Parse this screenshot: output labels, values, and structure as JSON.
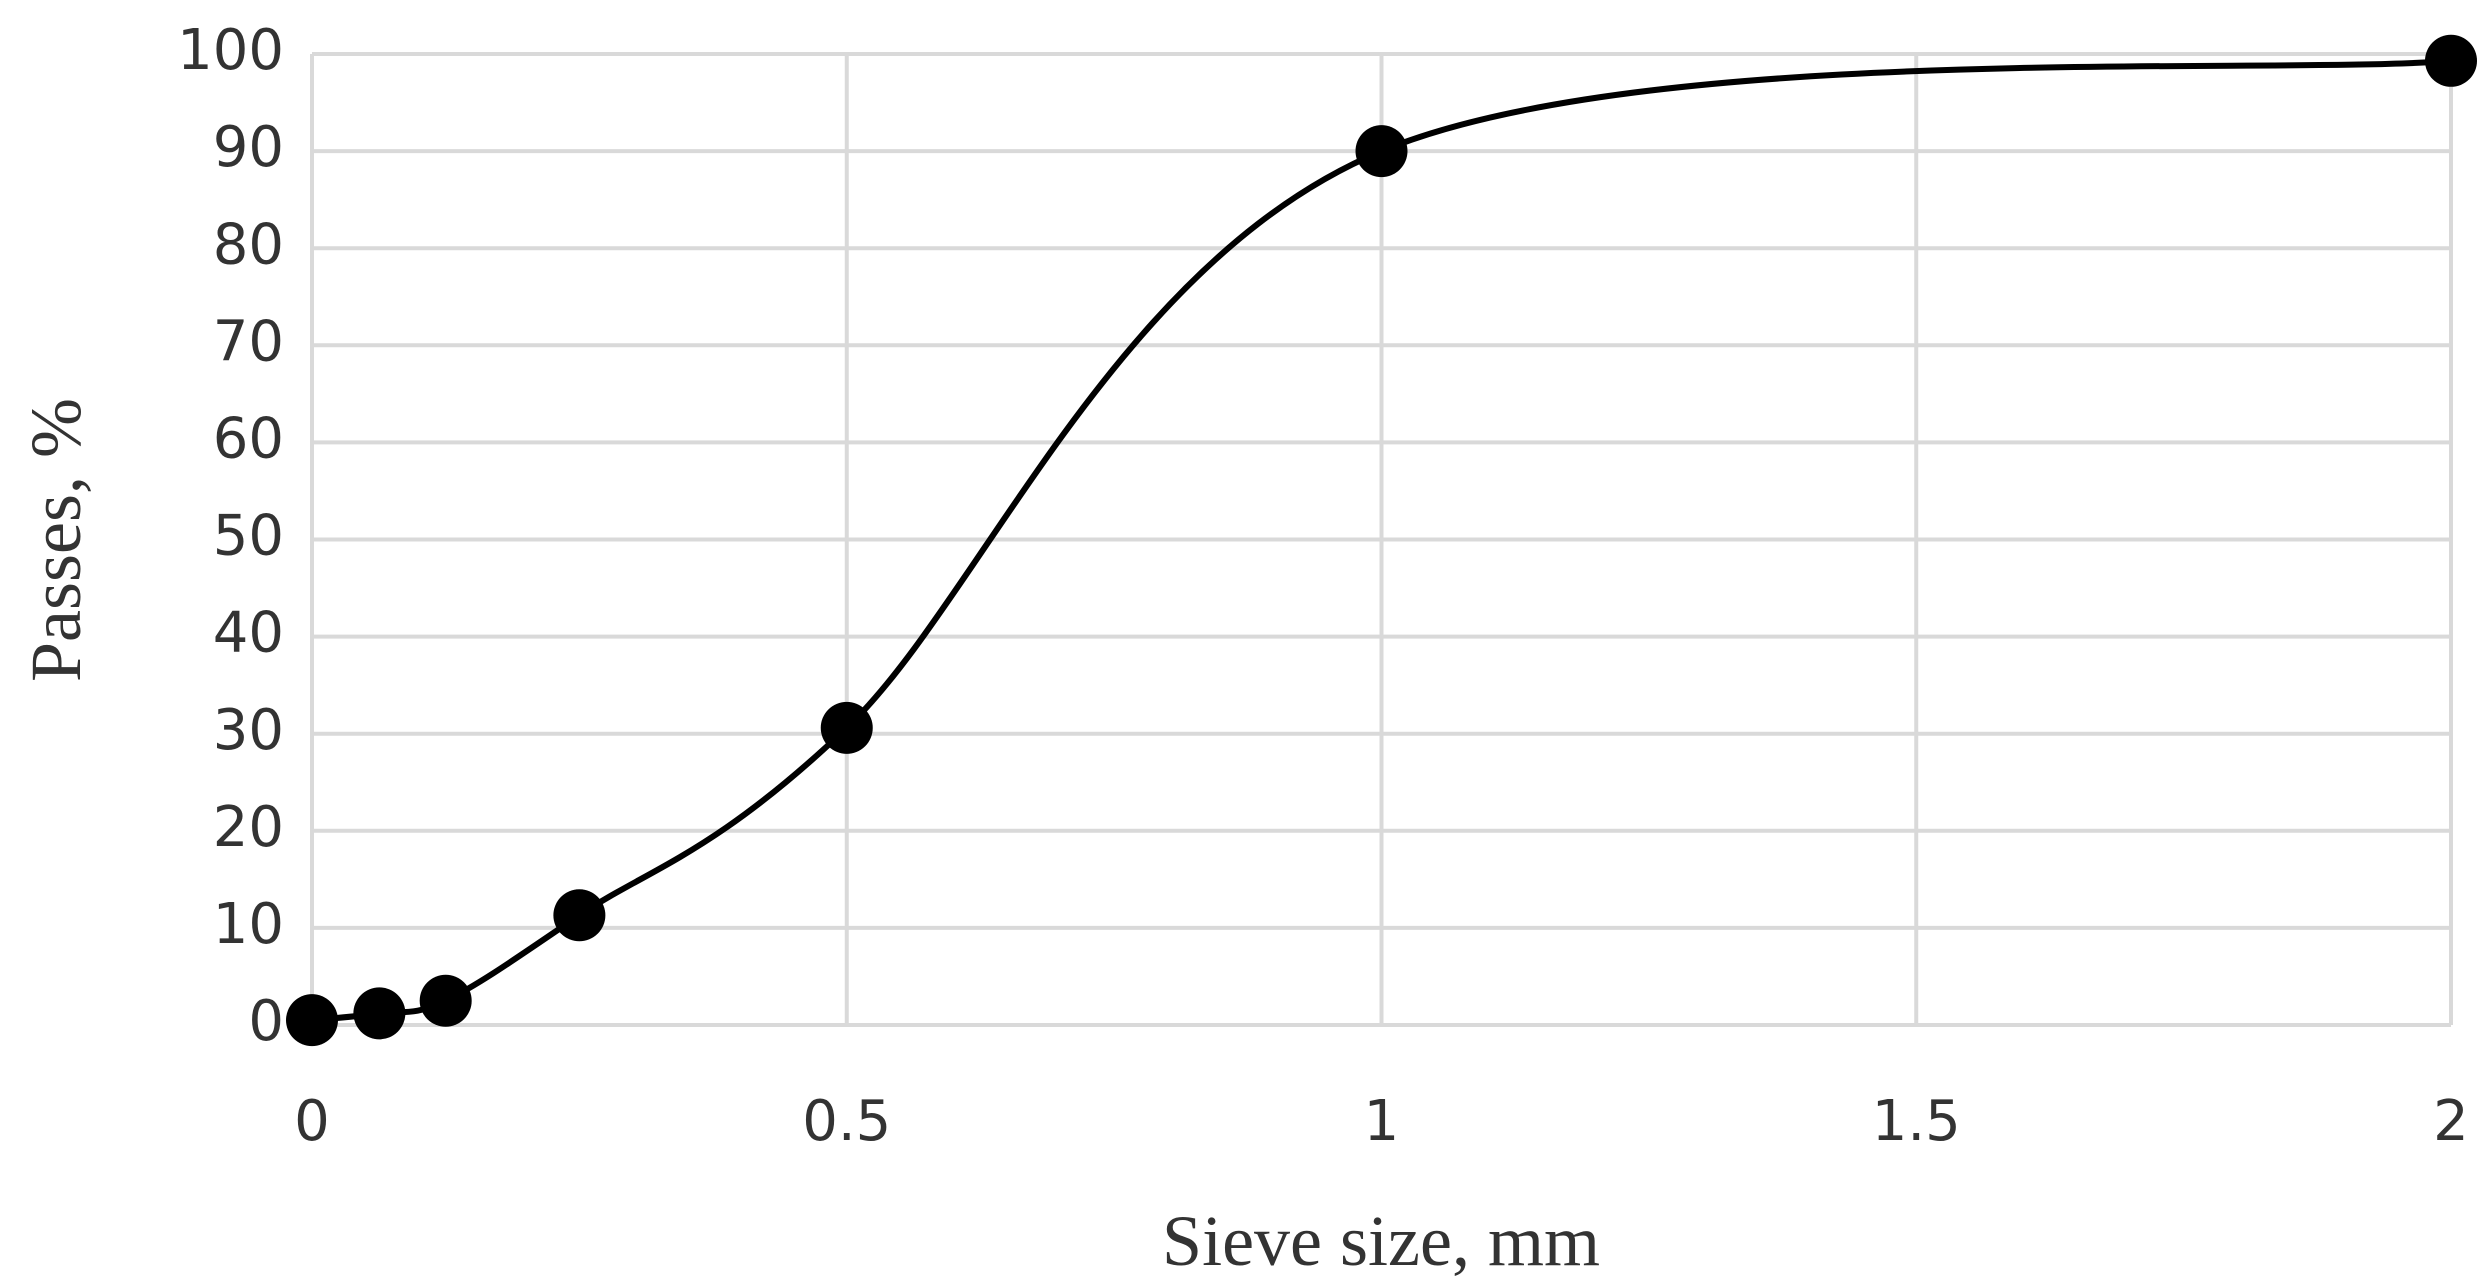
{
  "chart_data": {
    "type": "line",
    "x_label": "Sieve size, mm",
    "y_label": "Passes, %",
    "x": [
      0,
      0.063,
      0.125,
      0.25,
      0.5,
      1,
      2
    ],
    "series": [
      {
        "color": "#000000",
        "values": [
          0.5,
          1.2,
          2.5,
          11.3,
          30.6,
          90,
          99.3
        ]
      }
    ],
    "xlim": [
      0,
      2
    ],
    "xticks": [
      0,
      0.5,
      1,
      1.5,
      2
    ],
    "ylim": [
      0,
      100
    ],
    "yticks": [
      0,
      10,
      20,
      30,
      40,
      50,
      60,
      70,
      80,
      90,
      100
    ],
    "grid": true,
    "smooth": true,
    "markers": true
  }
}
